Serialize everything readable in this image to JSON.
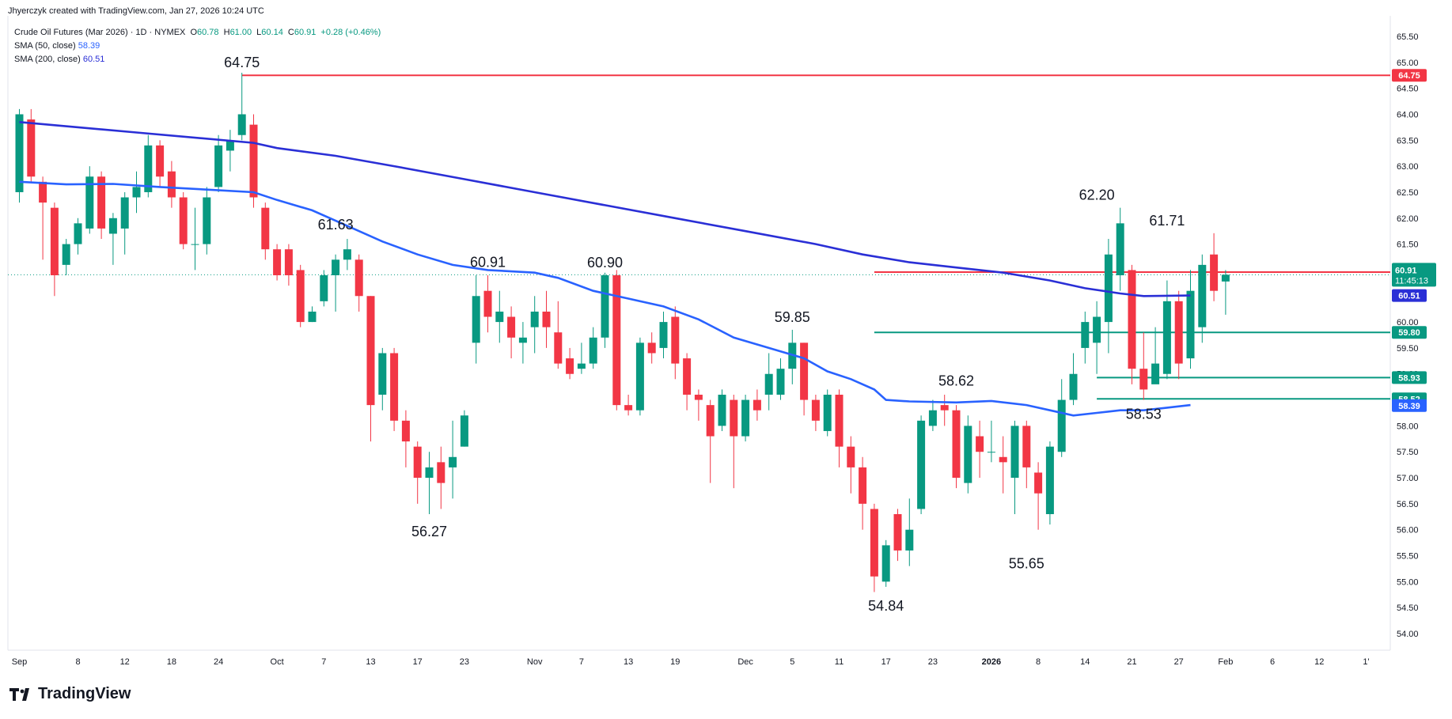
{
  "header": {
    "credit": "Jhyerczyk created with TradingView.com, Jan 27, 2026 10:24 UTC",
    "symbol": "Crude Oil Futures (Mar 2026) · 1D · NYMEX",
    "o_label": "O",
    "o_value": "60.78",
    "h_label": "H",
    "h_value": "61.00",
    "l_label": "L",
    "l_value": "60.14",
    "c_label": "C",
    "c_value": "60.91",
    "change": "+0.28 (+0.46%)",
    "sma50_label": "SMA (50, close)",
    "sma50_value": "58.39",
    "sma200_label": "SMA (200, close)",
    "sma200_value": "60.51"
  },
  "brand": {
    "name": "TradingView"
  },
  "colors": {
    "up": "#089981",
    "down": "#f23645",
    "sma50": "#2962ff",
    "sma200": "#2a2fd6",
    "resistance": "#f23645",
    "support": "#089981"
  },
  "chart_data": {
    "type": "candlestick",
    "ylim": [
      54.0,
      65.5
    ],
    "y_ticks": [
      "54.00",
      "54.50",
      "55.00",
      "55.50",
      "56.00",
      "56.50",
      "57.00",
      "57.50",
      "58.00",
      "58.50",
      "59.00",
      "59.50",
      "60.00",
      "60.50",
      "61.00",
      "61.50",
      "62.00",
      "62.50",
      "63.00",
      "63.50",
      "64.00",
      "64.50",
      "65.00",
      "65.50"
    ],
    "x_ticks": [
      {
        "label": "Sep",
        "i": 0
      },
      {
        "label": "8",
        "i": 5
      },
      {
        "label": "12",
        "i": 9
      },
      {
        "label": "18",
        "i": 13
      },
      {
        "label": "24",
        "i": 17
      },
      {
        "label": "Oct",
        "i": 22
      },
      {
        "label": "7",
        "i": 26
      },
      {
        "label": "13",
        "i": 30
      },
      {
        "label": "17",
        "i": 34
      },
      {
        "label": "23",
        "i": 38
      },
      {
        "label": "Nov",
        "i": 44
      },
      {
        "label": "7",
        "i": 48
      },
      {
        "label": "13",
        "i": 52
      },
      {
        "label": "19",
        "i": 56
      },
      {
        "label": "Dec",
        "i": 62
      },
      {
        "label": "5",
        "i": 66
      },
      {
        "label": "11",
        "i": 70
      },
      {
        "label": "17",
        "i": 74
      },
      {
        "label": "23",
        "i": 78
      },
      {
        "label": "2026",
        "i": 83
      },
      {
        "label": "8",
        "i": 87
      },
      {
        "label": "14",
        "i": 91
      },
      {
        "label": "21",
        "i": 95
      },
      {
        "label": "27",
        "i": 99
      },
      {
        "label": "Feb",
        "i": 103
      },
      {
        "label": "6",
        "i": 107
      },
      {
        "label": "12",
        "i": 111
      },
      {
        "label": "1'",
        "i": 115
      }
    ],
    "candles": [
      [
        62.5,
        64.0,
        64.1,
        62.3
      ],
      [
        63.9,
        62.8,
        64.1,
        62.7
      ],
      [
        62.7,
        62.3,
        62.8,
        61.2
      ],
      [
        62.2,
        60.9,
        62.3,
        60.5
      ],
      [
        61.1,
        61.5,
        61.6,
        60.9
      ],
      [
        61.5,
        61.9,
        62.0,
        61.3
      ],
      [
        61.8,
        62.8,
        63.0,
        61.7
      ],
      [
        62.8,
        61.8,
        62.9,
        61.6
      ],
      [
        61.7,
        62.0,
        62.1,
        61.1
      ],
      [
        61.8,
        62.4,
        62.5,
        61.3
      ],
      [
        62.4,
        62.6,
        62.9,
        62.1
      ],
      [
        62.5,
        63.4,
        63.6,
        62.4
      ],
      [
        63.4,
        62.8,
        63.5,
        62.6
      ],
      [
        62.9,
        62.4,
        63.1,
        62.2
      ],
      [
        62.4,
        61.5,
        62.5,
        61.4
      ],
      [
        61.5,
        61.5,
        62.2,
        61.0
      ],
      [
        61.5,
        62.4,
        62.6,
        61.3
      ],
      [
        62.6,
        63.4,
        63.6,
        62.5
      ],
      [
        63.3,
        63.5,
        63.7,
        62.9
      ],
      [
        63.6,
        64.0,
        64.8,
        63.5
      ],
      [
        63.8,
        62.4,
        64.0,
        62.2
      ],
      [
        62.2,
        61.4,
        62.3,
        61.2
      ],
      [
        61.4,
        60.9,
        61.5,
        60.8
      ],
      [
        61.4,
        60.9,
        61.5,
        60.7
      ],
      [
        61.0,
        60.0,
        61.1,
        59.9
      ],
      [
        60.0,
        60.2,
        60.3,
        60.0
      ],
      [
        60.4,
        60.9,
        61.0,
        60.3
      ],
      [
        60.9,
        61.2,
        61.3,
        60.2
      ],
      [
        61.2,
        61.4,
        61.6,
        61.0
      ],
      [
        61.2,
        60.5,
        61.3,
        60.2
      ],
      [
        60.5,
        58.4,
        60.5,
        57.7
      ],
      [
        58.6,
        59.4,
        59.5,
        58.3
      ],
      [
        59.4,
        58.1,
        59.5,
        57.9
      ],
      [
        58.1,
        57.7,
        58.3,
        57.2
      ],
      [
        57.6,
        57.0,
        57.7,
        56.5
      ],
      [
        57.0,
        57.2,
        57.5,
        56.3
      ],
      [
        57.3,
        56.9,
        57.6,
        56.4
      ],
      [
        57.2,
        57.4,
        58.1,
        56.6
      ],
      [
        57.6,
        58.2,
        58.3,
        57.6
      ],
      [
        59.6,
        60.5,
        60.9,
        59.2
      ],
      [
        60.6,
        60.1,
        60.9,
        59.8
      ],
      [
        60.0,
        60.2,
        60.6,
        59.6
      ],
      [
        60.1,
        59.7,
        60.3,
        59.3
      ],
      [
        59.6,
        59.7,
        60.0,
        59.2
      ],
      [
        59.9,
        60.2,
        60.5,
        59.4
      ],
      [
        60.2,
        59.9,
        60.6,
        59.5
      ],
      [
        59.8,
        59.2,
        60.4,
        59.1
      ],
      [
        59.3,
        59.0,
        59.5,
        58.9
      ],
      [
        59.1,
        59.2,
        59.6,
        59.0
      ],
      [
        59.2,
        59.7,
        59.9,
        59.1
      ],
      [
        59.7,
        60.9,
        60.95,
        59.5
      ],
      [
        60.9,
        58.4,
        61.0,
        58.3
      ],
      [
        58.4,
        58.3,
        58.6,
        58.2
      ],
      [
        58.3,
        59.6,
        59.7,
        58.2
      ],
      [
        59.6,
        59.4,
        59.8,
        59.2
      ],
      [
        59.5,
        60.0,
        60.2,
        59.3
      ],
      [
        60.1,
        59.2,
        60.3,
        58.9
      ],
      [
        59.3,
        58.6,
        59.4,
        58.3
      ],
      [
        58.6,
        58.5,
        58.7,
        58.1
      ],
      [
        58.4,
        57.8,
        58.5,
        56.9
      ],
      [
        58.0,
        58.6,
        58.7,
        57.9
      ],
      [
        58.5,
        57.8,
        58.6,
        56.8
      ],
      [
        57.8,
        58.5,
        58.6,
        57.7
      ],
      [
        58.5,
        58.3,
        58.7,
        58.1
      ],
      [
        58.6,
        59.0,
        59.4,
        58.3
      ],
      [
        58.6,
        59.1,
        59.3,
        58.5
      ],
      [
        59.1,
        59.6,
        59.85,
        58.8
      ],
      [
        59.6,
        58.5,
        59.6,
        58.2
      ],
      [
        58.5,
        58.1,
        58.6,
        57.9
      ],
      [
        57.9,
        58.6,
        58.7,
        57.8
      ],
      [
        58.6,
        57.6,
        58.7,
        57.2
      ],
      [
        57.6,
        57.2,
        57.8,
        56.7
      ],
      [
        57.2,
        56.5,
        57.4,
        56.0
      ],
      [
        56.4,
        55.1,
        56.5,
        54.8
      ],
      [
        55.0,
        55.7,
        55.8,
        54.9
      ],
      [
        56.3,
        55.6,
        56.4,
        55.4
      ],
      [
        55.6,
        56.0,
        56.6,
        55.3
      ],
      [
        56.4,
        58.1,
        58.2,
        56.3
      ],
      [
        58.0,
        58.3,
        58.5,
        57.9
      ],
      [
        58.4,
        58.3,
        58.6,
        58.0
      ],
      [
        58.3,
        57.0,
        58.4,
        56.8
      ],
      [
        56.9,
        58.0,
        58.2,
        56.7
      ],
      [
        57.8,
        57.5,
        58.1,
        57.0
      ],
      [
        57.5,
        57.5,
        58.1,
        57.3
      ],
      [
        57.4,
        57.3,
        57.8,
        56.7
      ],
      [
        57.0,
        58.0,
        58.1,
        56.3
      ],
      [
        58.0,
        57.2,
        58.1,
        56.8
      ],
      [
        57.1,
        56.7,
        57.3,
        56.0
      ],
      [
        56.3,
        57.6,
        57.7,
        56.1
      ],
      [
        57.5,
        58.5,
        58.9,
        57.4
      ],
      [
        58.5,
        59.0,
        59.4,
        58.4
      ],
      [
        59.5,
        60.0,
        60.2,
        59.2
      ],
      [
        59.6,
        60.1,
        60.4,
        59.0
      ],
      [
        60.0,
        61.3,
        61.6,
        59.4
      ],
      [
        60.9,
        61.9,
        62.2,
        60.6
      ],
      [
        61.0,
        59.1,
        61.1,
        58.8
      ],
      [
        59.1,
        58.7,
        59.8,
        58.5
      ],
      [
        58.8,
        59.2,
        59.9,
        58.9
      ],
      [
        59.0,
        60.4,
        60.8,
        58.9
      ],
      [
        60.4,
        59.2,
        60.6,
        58.9
      ],
      [
        59.3,
        60.6,
        61.0,
        59.1
      ],
      [
        59.9,
        61.1,
        61.3,
        59.6
      ],
      [
        61.3,
        60.6,
        61.71,
        60.4
      ],
      [
        60.78,
        60.91,
        61.0,
        60.14
      ]
    ],
    "sma50": [
      [
        0,
        62.7
      ],
      [
        4,
        62.65
      ],
      [
        8,
        62.66
      ],
      [
        12,
        62.6
      ],
      [
        16,
        62.55
      ],
      [
        20,
        62.5
      ],
      [
        22,
        62.35
      ],
      [
        25,
        62.15
      ],
      [
        28,
        61.85
      ],
      [
        31,
        61.55
      ],
      [
        34,
        61.3
      ],
      [
        37,
        61.1
      ],
      [
        40,
        61.0
      ],
      [
        44,
        60.95
      ],
      [
        46,
        60.85
      ],
      [
        49,
        60.6
      ],
      [
        52,
        60.45
      ],
      [
        55,
        60.3
      ],
      [
        58,
        60.05
      ],
      [
        61,
        59.7
      ],
      [
        64,
        59.5
      ],
      [
        67,
        59.3
      ],
      [
        69,
        59.05
      ],
      [
        71,
        58.9
      ],
      [
        73,
        58.7
      ],
      [
        74,
        58.5
      ],
      [
        76,
        58.47
      ],
      [
        80,
        58.45
      ],
      [
        83,
        58.48
      ],
      [
        86,
        58.4
      ],
      [
        88,
        58.3
      ],
      [
        90,
        58.2
      ],
      [
        92,
        58.25
      ],
      [
        94,
        58.3
      ],
      [
        96,
        58.3
      ],
      [
        98,
        58.35
      ],
      [
        100,
        58.4
      ]
    ],
    "sma200": [
      [
        0,
        63.85
      ],
      [
        10,
        63.65
      ],
      [
        20,
        63.45
      ],
      [
        22,
        63.35
      ],
      [
        27,
        63.2
      ],
      [
        32,
        63.0
      ],
      [
        38,
        62.75
      ],
      [
        44,
        62.5
      ],
      [
        50,
        62.25
      ],
      [
        56,
        62.0
      ],
      [
        62,
        61.75
      ],
      [
        68,
        61.5
      ],
      [
        72,
        61.3
      ],
      [
        76,
        61.15
      ],
      [
        80,
        61.05
      ],
      [
        84,
        60.95
      ],
      [
        88,
        60.8
      ],
      [
        91,
        60.65
      ],
      [
        94,
        60.55
      ],
      [
        96,
        60.5
      ],
      [
        100,
        60.51
      ]
    ],
    "annotations": [
      {
        "text": "64.75",
        "i": 19,
        "value": 64.75,
        "pos": "above"
      },
      {
        "text": "61.63",
        "i": 27,
        "value": 61.63,
        "pos": "above"
      },
      {
        "text": "56.27",
        "i": 35,
        "value": 56.27,
        "pos": "below"
      },
      {
        "text": "60.91",
        "i": 40,
        "value": 60.91,
        "pos": "above"
      },
      {
        "text": "60.90",
        "i": 50,
        "value": 60.9,
        "pos": "above"
      },
      {
        "text": "59.85",
        "i": 66,
        "value": 59.85,
        "pos": "above"
      },
      {
        "text": "54.84",
        "i": 74,
        "value": 54.84,
        "pos": "below"
      },
      {
        "text": "58.62",
        "i": 80,
        "value": 58.62,
        "pos": "above"
      },
      {
        "text": "55.65",
        "i": 86,
        "value": 55.65,
        "pos": "below"
      },
      {
        "text": "62.20",
        "i": 92,
        "value": 62.2,
        "pos": "above"
      },
      {
        "text": "58.53",
        "i": 96,
        "value": 58.53,
        "pos": "below"
      },
      {
        "text": "61.71",
        "i": 98,
        "value": 61.71,
        "pos": "above"
      }
    ],
    "levels": [
      {
        "value": 64.75,
        "label": "64.75",
        "color": "resistance",
        "from_i": 19
      },
      {
        "value": 60.96,
        "label": "60.96",
        "color": "resistance",
        "from_i": 73
      },
      {
        "value": 59.8,
        "label": "59.80",
        "color": "support",
        "from_i": 73
      },
      {
        "value": 58.93,
        "label": "58.93",
        "color": "support",
        "from_i": 92
      },
      {
        "value": 58.52,
        "label": "58.52",
        "color": "support",
        "from_i": 92
      }
    ],
    "last_price": {
      "value": 60.91,
      "label": "60.91",
      "countdown": "11:45:13"
    },
    "sma_tags": [
      {
        "value": 60.51,
        "label": "60.51",
        "series": "sma200"
      },
      {
        "value": 58.39,
        "label": "58.39",
        "series": "sma50"
      }
    ]
  }
}
